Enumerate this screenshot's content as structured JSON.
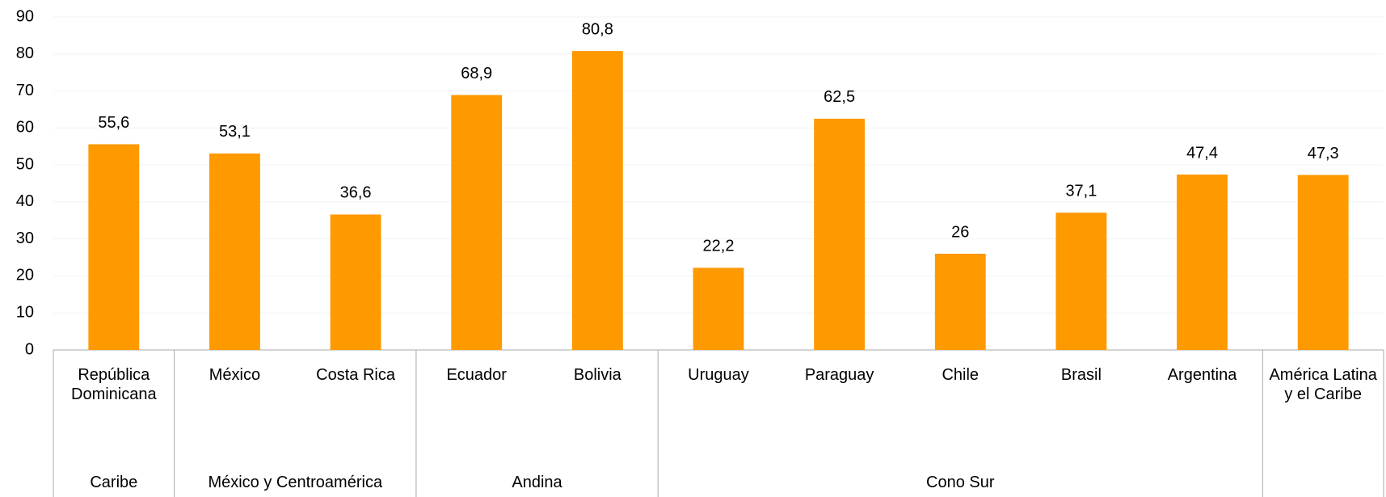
{
  "chart_data": {
    "type": "bar",
    "color": "#ff9900",
    "grid": true,
    "ylim": [
      0,
      90
    ],
    "yticks": [
      0,
      10,
      20,
      30,
      40,
      50,
      60,
      70,
      80,
      90
    ],
    "groups": [
      {
        "label": "Caribe",
        "categories": [
          "República Dominicana"
        ]
      },
      {
        "label": "México y Centroamérica",
        "categories": [
          "México",
          "Costa Rica"
        ]
      },
      {
        "label": "Andina",
        "categories": [
          "Ecuador",
          "Bolivia"
        ]
      },
      {
        "label": "Cono Sur",
        "categories": [
          "Uruguay",
          "Paraguay",
          "Chile",
          "Brasil",
          "Argentina"
        ]
      },
      {
        "categories": [
          "América Latina y el Caribe"
        ]
      }
    ],
    "values": [
      55.6,
      53.1,
      36.6,
      68.9,
      80.8,
      22.2,
      62.5,
      26,
      37.1,
      47.4,
      47.3
    ],
    "value_labels": [
      "55,6",
      "53,1",
      "36,6",
      "68,9",
      "80,8",
      "22,2",
      "62,5",
      "26",
      "37,1",
      "47,4",
      "47,3"
    ]
  }
}
